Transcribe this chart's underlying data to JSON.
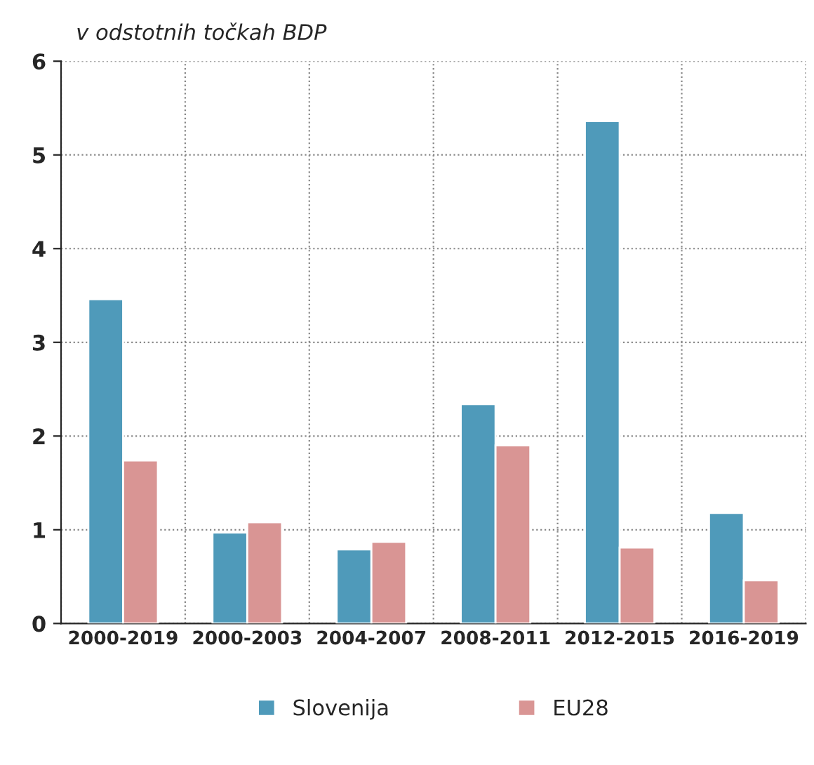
{
  "chart_data": {
    "type": "bar",
    "title": "v odstotnih točkah BDP",
    "categories": [
      "2000-2019",
      "2000-2003",
      "2004-2007",
      "2008-2011",
      "2012-2015",
      "2016-2019"
    ],
    "series": [
      {
        "name": "Slovenija",
        "color": "#4f9aba",
        "values": [
          3.46,
          0.97,
          0.79,
          2.34,
          5.36,
          1.18
        ]
      },
      {
        "name": "EU28",
        "color": "#d99594",
        "values": [
          1.74,
          1.08,
          0.87,
          1.9,
          0.81,
          0.46
        ]
      }
    ],
    "ylim": [
      0,
      6
    ],
    "yticks": [
      0,
      1,
      2,
      3,
      4,
      5,
      6
    ],
    "grid": true,
    "legend": "bottom"
  }
}
